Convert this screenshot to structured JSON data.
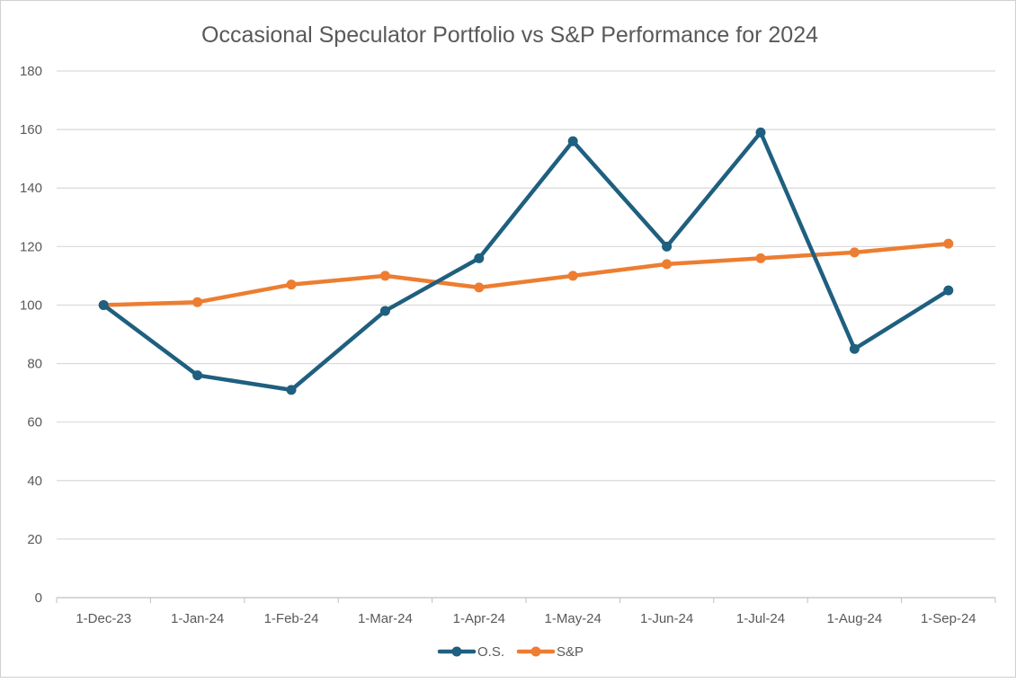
{
  "chart_data": {
    "type": "line",
    "title": "Occasional Speculator Portfolio vs S&P Performance for 2024",
    "categories": [
      "1-Dec-23",
      "1-Jan-24",
      "1-Feb-24",
      "1-Mar-24",
      "1-Apr-24",
      "1-May-24",
      "1-Jun-24",
      "1-Jul-24",
      "1-Aug-24",
      "1-Sep-24"
    ],
    "yticks": [
      "0",
      "20",
      "40",
      "60",
      "80",
      "100",
      "120",
      "140",
      "160",
      "180"
    ],
    "ylim": [
      0,
      180
    ],
    "grid": true,
    "legend": "bottom-center",
    "xlabel": "",
    "ylabel": "",
    "series": [
      {
        "name": "O.S.",
        "color": "#1f5f7f",
        "values": [
          100,
          76,
          71,
          98,
          116,
          156,
          120,
          159,
          85,
          105
        ]
      },
      {
        "name": "S&P",
        "color": "#ed7d31",
        "values": [
          100,
          101,
          107,
          110,
          106,
          110,
          114,
          116,
          118,
          121
        ]
      }
    ]
  }
}
